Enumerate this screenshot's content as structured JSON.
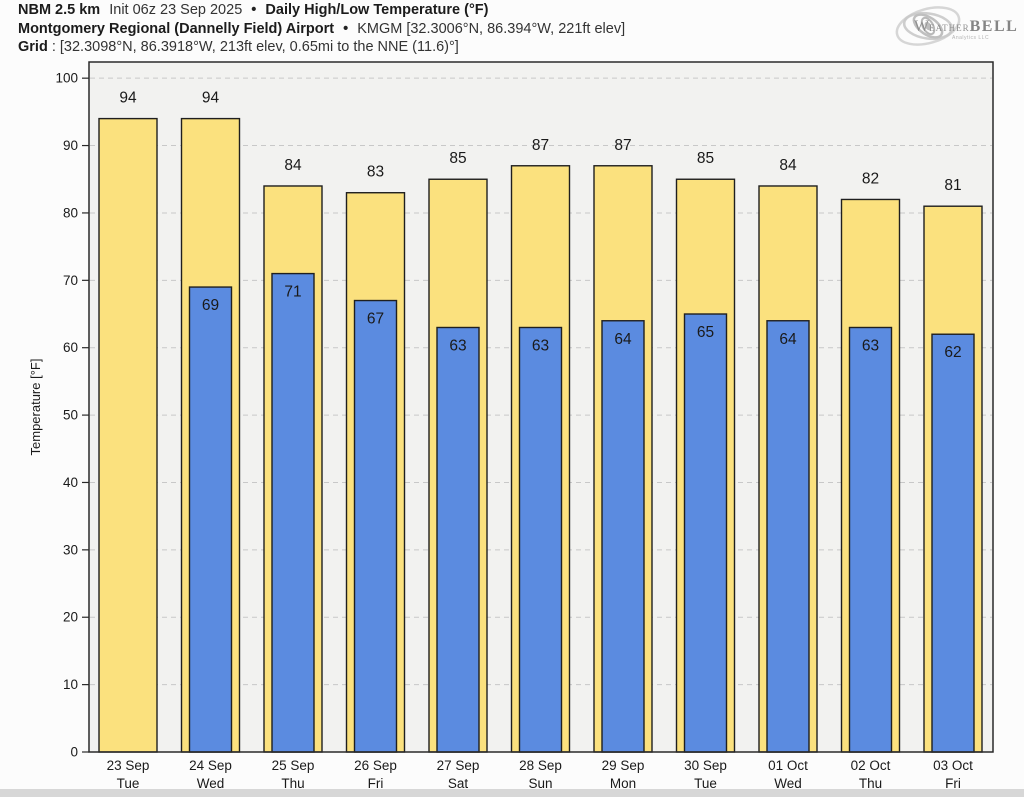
{
  "header": {
    "line1": {
      "model": "NBM 2.5 km",
      "init": "Init 06z 23 Sep 2025",
      "sep": "•",
      "title": "Daily High/Low Temperature (°F)"
    },
    "line2": {
      "station": "Montgomery Regional (Dannelly Field) Airport",
      "sep": "•",
      "station_id": "KMGM [32.3006°N, 86.394°W, 221ft elev]"
    },
    "line3": {
      "label": "Grid",
      "details": ": [32.3098°N, 86.3918°W, 213ft elev, 0.65mi to the NNE (11.6)°]"
    }
  },
  "logo": {
    "word_start": "W",
    "word_mid": "EATHER",
    "word_end": "BELL",
    "subtext": "Analytics LLC"
  },
  "chart_data": {
    "type": "bar",
    "title": "Daily High/Low Temperature (°F)",
    "ylabel": "Temperature [°F]",
    "ylim": [
      0,
      102.4
    ],
    "yticks": [
      0,
      10,
      20,
      30,
      40,
      50,
      60,
      70,
      80,
      90,
      100
    ],
    "grid": "horizontal-dashed",
    "legend": "none",
    "categories": [
      "23 Sep",
      "24 Sep",
      "25 Sep",
      "26 Sep",
      "27 Sep",
      "28 Sep",
      "29 Sep",
      "30 Sep",
      "01 Oct",
      "02 Oct",
      "03 Oct"
    ],
    "weekdays": [
      "Tue",
      "Wed",
      "Thu",
      "Fri",
      "Sat",
      "Sun",
      "Mon",
      "Tue",
      "Wed",
      "Thu",
      "Fri"
    ],
    "series": [
      {
        "name": "Daily High",
        "color": "#fbe17e",
        "values": [
          94,
          94,
          84,
          83,
          85,
          87,
          87,
          85,
          84,
          82,
          81
        ]
      },
      {
        "name": "Daily Low",
        "color": "#5b8be0",
        "values": [
          null,
          69,
          71,
          67,
          63,
          63,
          64,
          65,
          64,
          63,
          62
        ]
      }
    ]
  },
  "colors": {
    "plot_background": "#f2f2f0",
    "gridline": "#c8c8c8",
    "spine": "#2a2a2a",
    "bar_outline": "#1f1f1f",
    "text": "#1a1a1a",
    "page_background": "#fcfcfc",
    "bottom_strip": "#d7d7d7"
  }
}
